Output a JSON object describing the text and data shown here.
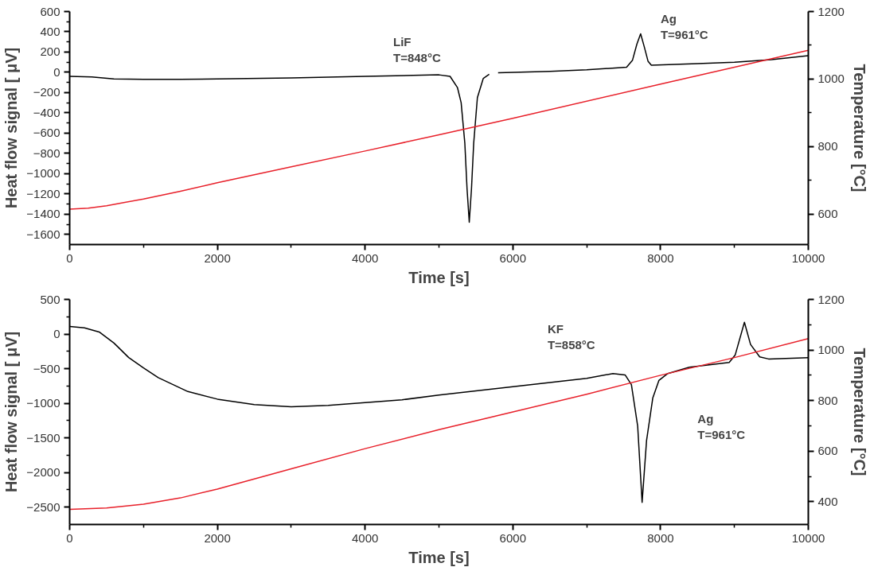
{
  "chart_data": [
    {
      "type": "line",
      "xlabel": "Time [s]",
      "ylabel": "Heat flow signal [ μV]",
      "y2label": "Temperature [°C]",
      "xlim": [
        0,
        10000
      ],
      "xticks": [
        0,
        2000,
        4000,
        6000,
        8000,
        10000
      ],
      "ylim": [
        -1700,
        600
      ],
      "yticks": [
        -1600,
        -1400,
        -1200,
        -1000,
        -800,
        -600,
        -400,
        -200,
        0,
        200,
        400,
        600
      ],
      "y2lim": [
        510,
        1200
      ],
      "y2ticks": [
        600,
        800,
        1000,
        1200
      ],
      "annotations": [
        "LiF\nT=848°C",
        "Ag\nT=961°C"
      ],
      "series": [
        {
          "color": "#000000",
          "x": [
            0,
            300,
            600,
            1000,
            1500,
            2000,
            3000,
            4000,
            5000,
            5150,
            5250,
            5300,
            5350,
            5380,
            5410,
            5440,
            5470,
            5520,
            5600,
            5680,
            5740,
            5800,
            6500,
            7000,
            7540,
            7620,
            7680,
            7730,
            7780,
            7830,
            7875,
            8500,
            9000,
            9500,
            10000
          ],
          "values": [
            -40,
            -45,
            -65,
            -70,
            -70,
            -65,
            -55,
            -40,
            -25,
            -40,
            -150,
            -300,
            -700,
            -1150,
            -1480,
            -1150,
            -700,
            -250,
            -60,
            -20,
            null,
            -5,
            10,
            25,
            50,
            120,
            280,
            380,
            250,
            110,
            70,
            85,
            100,
            125,
            165
          ]
        },
        {
          "color": "#e8202a",
          "axis": "y2",
          "x": [
            0,
            250,
            500,
            1000,
            1500,
            2000,
            3000,
            4000,
            5000,
            6000,
            8000,
            10000
          ],
          "values": [
            615,
            618,
            625,
            645,
            668,
            693,
            740,
            787,
            835,
            884,
            985,
            1085
          ]
        }
      ]
    },
    {
      "type": "line",
      "xlabel": "Time [s]",
      "ylabel": "Heat flow signal [ μV]",
      "y2label": "Temperature [°C]",
      "xlim": [
        0,
        10000
      ],
      "xticks": [
        0,
        2000,
        4000,
        6000,
        8000,
        10000
      ],
      "ylim": [
        -2750,
        500
      ],
      "yticks": [
        -2500,
        -2000,
        -1500,
        -1000,
        -500,
        0,
        500
      ],
      "y2lim": [
        310,
        1200
      ],
      "y2ticks": [
        400,
        600,
        800,
        1000,
        1200
      ],
      "annotations": [
        "KF\nT=858°C",
        "Ag\nT=961°C"
      ],
      "series": [
        {
          "color": "#000000",
          "x": [
            0,
            200,
            400,
            600,
            800,
            1000,
            1200,
            1600,
            2000,
            2500,
            3000,
            3500,
            4000,
            4500,
            5000,
            6000,
            7000,
            7355,
            7520,
            7605,
            7690,
            7750,
            7810,
            7895,
            7977,
            8097,
            8390,
            8929,
            9011,
            9135,
            9218,
            9342,
            9463,
            10000
          ],
          "values": [
            110,
            90,
            30,
            -130,
            -340,
            -490,
            -630,
            -830,
            -940,
            -1020,
            -1050,
            -1030,
            -990,
            -950,
            -880,
            -760,
            -640,
            -570,
            -590,
            -730,
            -1330,
            -2430,
            -1540,
            -920,
            -670,
            -570,
            -480,
            -410,
            -300,
            170,
            -150,
            -330,
            -360,
            -340
          ]
        },
        {
          "color": "#e8202a",
          "axis": "y2",
          "x": [
            0,
            500,
            1000,
            1500,
            2000,
            3000,
            4000,
            5000,
            6000,
            7000,
            8000,
            9000,
            10000
          ],
          "values": [
            370,
            375,
            390,
            415,
            450,
            530,
            610,
            685,
            755,
            825,
            900,
            970,
            1045
          ]
        }
      ]
    }
  ]
}
